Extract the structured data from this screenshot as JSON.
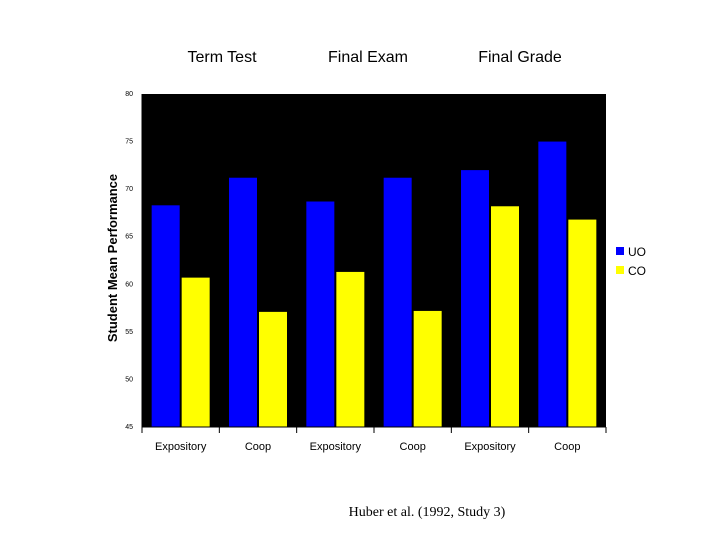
{
  "chart_data": {
    "type": "bar",
    "group_titles": [
      "Term Test",
      "Final Exam",
      "Final Grade"
    ],
    "categories": [
      "Expository",
      "Coop",
      "Expository",
      "Coop",
      "Expository",
      "Coop"
    ],
    "ylabel": "Student Mean Performance",
    "ylim": [
      45,
      80
    ],
    "yticks": [
      45,
      50,
      55,
      60,
      65,
      70,
      75,
      80
    ],
    "series": [
      {
        "name": "UO",
        "color": "#0000FF",
        "values": [
          68.3,
          71.2,
          68.7,
          71.2,
          72.0,
          75.0
        ]
      },
      {
        "name": "CO",
        "color": "#FFFF00",
        "values": [
          60.7,
          57.1,
          61.3,
          57.2,
          68.2,
          66.8
        ]
      }
    ],
    "legend_position": "right",
    "plot_background": "#000000",
    "grid": false
  },
  "caption": "Huber et al. (1992, Study 3)"
}
